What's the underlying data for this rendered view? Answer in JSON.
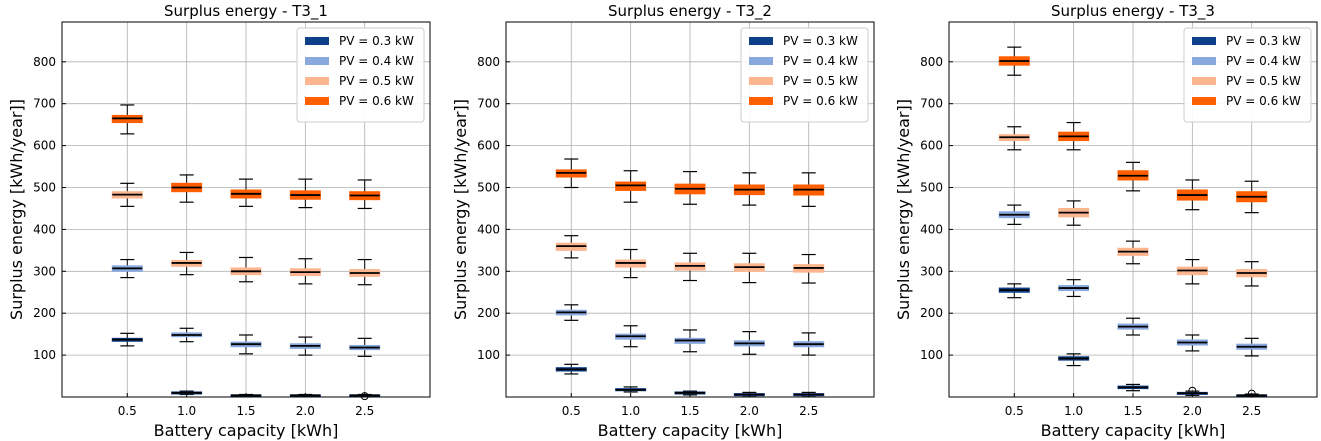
{
  "figure": {
    "kind": "three-panel box plot figure"
  },
  "chart_data": [
    {
      "type": "box",
      "title": "Surplus energy - T3_1",
      "xlabel": "Battery capacity [kWh]",
      "ylabel": "Surplus energy  [kWh/year]]",
      "categories": [
        "0.5",
        "1.0",
        "1.5",
        "2.0",
        "2.5"
      ],
      "yticks": [
        "100",
        "200",
        "300",
        "400",
        "500",
        "600",
        "700",
        "800"
      ],
      "ylim": [
        0,
        895
      ],
      "grid": true,
      "legend_position": "top-right",
      "series": [
        {
          "name": "PV = 0.3 kW",
          "color": "#0d3f8a",
          "boxes": [
            [
              122,
              133,
              137,
              140,
              152
            ],
            [
              6,
              8,
              10,
              12,
              14
            ],
            [
              2,
              3,
              4,
              5,
              6
            ],
            [
              2,
              3,
              4,
              5,
              6
            ],
            [
              2,
              3,
              4,
              5,
              6
            ]
          ],
          "outliers": [
            [],
            [],
            [],
            [],
            [
              2
            ]
          ]
        },
        {
          "name": "PV = 0.4 kW",
          "color": "#88a8de",
          "boxes": [
            [
              285,
              300,
              307,
              313,
              328
            ],
            [
              132,
              144,
              148,
              153,
              164
            ],
            [
              103,
              120,
              126,
              131,
              148
            ],
            [
              100,
              116,
              122,
              127,
              143
            ],
            [
              97,
              113,
              118,
              123,
              140
            ]
          ],
          "outliers": [
            [],
            [],
            [],
            [],
            []
          ]
        },
        {
          "name": "PV = 0.5 kW",
          "color": "#fdb58f",
          "boxes": [
            [
              455,
              475,
              483,
              490,
              510
            ],
            [
              292,
              312,
              320,
              326,
              345
            ],
            [
              275,
              292,
              300,
              308,
              333
            ],
            [
              270,
              290,
              298,
              306,
              330
            ],
            [
              268,
              288,
              296,
              304,
              328
            ]
          ],
          "outliers": [
            [],
            [],
            [],
            [],
            []
          ]
        },
        {
          "name": "PV = 0.6 kW",
          "color": "#ff5f00",
          "boxes": [
            [
              628,
              655,
              665,
              672,
              697
            ],
            [
              465,
              490,
              500,
              510,
              530
            ],
            [
              455,
              475,
              485,
              494,
              520
            ],
            [
              452,
              472,
              482,
              492,
              520
            ],
            [
              450,
              471,
              481,
              490,
              518
            ]
          ],
          "outliers": [
            [],
            [],
            [],
            [],
            []
          ]
        }
      ]
    },
    {
      "type": "box",
      "title": "Surplus energy - T3_2",
      "xlabel": "Battery capacity [kWh]",
      "ylabel": "Surplus energy  [kWh/year]]",
      "categories": [
        "0.5",
        "1.0",
        "1.5",
        "2.0",
        "2.5"
      ],
      "yticks": [
        "100",
        "200",
        "300",
        "400",
        "500",
        "600",
        "700",
        "800"
      ],
      "ylim": [
        0,
        895
      ],
      "grid": true,
      "legend_position": "top-right",
      "series": [
        {
          "name": "PV = 0.3 kW",
          "color": "#0d3f8a",
          "boxes": [
            [
              55,
              62,
              66,
              70,
              78
            ],
            [
              12,
              15,
              17,
              20,
              24
            ],
            [
              5,
              8,
              10,
              12,
              14
            ],
            [
              3,
              5,
              6,
              8,
              11
            ],
            [
              3,
              5,
              6,
              8,
              11
            ]
          ],
          "outliers": [
            [],
            [],
            [],
            [],
            []
          ]
        },
        {
          "name": "PV = 0.4 kW",
          "color": "#88a8de",
          "boxes": [
            [
              183,
              196,
              202,
              207,
              220
            ],
            [
              120,
              138,
              145,
              150,
              170
            ],
            [
              108,
              128,
              135,
              140,
              160
            ],
            [
              102,
              122,
              128,
              134,
              156
            ],
            [
              100,
              120,
              126,
              132,
              153
            ]
          ],
          "outliers": [
            [],
            [],
            [],
            [],
            []
          ]
        },
        {
          "name": "PV = 0.5 kW",
          "color": "#fdb58f",
          "boxes": [
            [
              332,
              350,
              360,
              367,
              385
            ],
            [
              285,
              310,
              320,
              327,
              352
            ],
            [
              278,
              303,
              313,
              320,
              343
            ],
            [
              273,
              300,
              310,
              318,
              343
            ],
            [
              272,
              298,
              308,
              316,
              340
            ]
          ],
          "outliers": [
            [],
            [],
            [],
            [],
            []
          ]
        },
        {
          "name": "PV = 0.6 kW",
          "color": "#ff5f00",
          "boxes": [
            [
              500,
              525,
              535,
              542,
              568
            ],
            [
              465,
              493,
              505,
              513,
              540
            ],
            [
              460,
              485,
              497,
              508,
              538
            ],
            [
              458,
              483,
              495,
              506,
              535
            ],
            [
              455,
              482,
              495,
              506,
              535
            ]
          ],
          "outliers": [
            [],
            [],
            [],
            [],
            []
          ]
        }
      ]
    },
    {
      "type": "box",
      "title": "Surplus energy - T3_3",
      "xlabel": "Battery capacity [kWh]",
      "ylabel": "Surplus energy  [kWh/year]]",
      "categories": [
        "0.5",
        "1.0",
        "1.5",
        "2.0",
        "2.5"
      ],
      "yticks": [
        "100",
        "200",
        "300",
        "400",
        "500",
        "600",
        "700",
        "800"
      ],
      "ylim": [
        0,
        895
      ],
      "grid": true,
      "legend_position": "top-right",
      "series": [
        {
          "name": "PV = 0.3 kW",
          "color": "#0d3f8a",
          "boxes": [
            [
              237,
              250,
              255,
              260,
              270
            ],
            [
              75,
              88,
              92,
              96,
              103
            ],
            [
              15,
              20,
              23,
              26,
              30
            ],
            [
              4,
              7,
              9,
              11,
              14
            ],
            [
              2,
              3,
              4,
              5,
              7
            ]
          ],
          "outliers": [
            [],
            [],
            [],
            [
              15
            ],
            [
              8
            ]
          ]
        },
        {
          "name": "PV = 0.4 kW",
          "color": "#88a8de",
          "boxes": [
            [
              412,
              428,
              435,
              442,
              458
            ],
            [
              240,
              254,
              260,
              266,
              280
            ],
            [
              148,
              162,
              168,
              174,
              188
            ],
            [
              110,
              124,
              130,
              136,
              148
            ],
            [
              98,
              114,
              120,
              126,
              140
            ]
          ],
          "outliers": [
            [],
            [],
            [],
            [],
            []
          ]
        },
        {
          "name": "PV = 0.5 kW",
          "color": "#fdb58f",
          "boxes": [
            [
              590,
              612,
              620,
              626,
              645
            ],
            [
              410,
              430,
              440,
              450,
              468
            ],
            [
              318,
              338,
              347,
              355,
              372
            ],
            [
              270,
              292,
              302,
              310,
              328
            ],
            [
              265,
              287,
              296,
              304,
              323
            ]
          ],
          "outliers": [
            [],
            [],
            [],
            [],
            []
          ]
        },
        {
          "name": "PV = 0.6 kW",
          "color": "#ff5f00",
          "boxes": [
            [
              768,
              792,
              802,
              812,
              835
            ],
            [
              590,
              612,
              622,
              632,
              655
            ],
            [
              492,
              518,
              528,
              540,
              560
            ],
            [
              447,
              470,
              482,
              494,
              518
            ],
            [
              440,
              466,
              478,
              490,
              515
            ]
          ],
          "outliers": [
            [],
            [],
            [],
            [],
            []
          ]
        }
      ]
    }
  ]
}
